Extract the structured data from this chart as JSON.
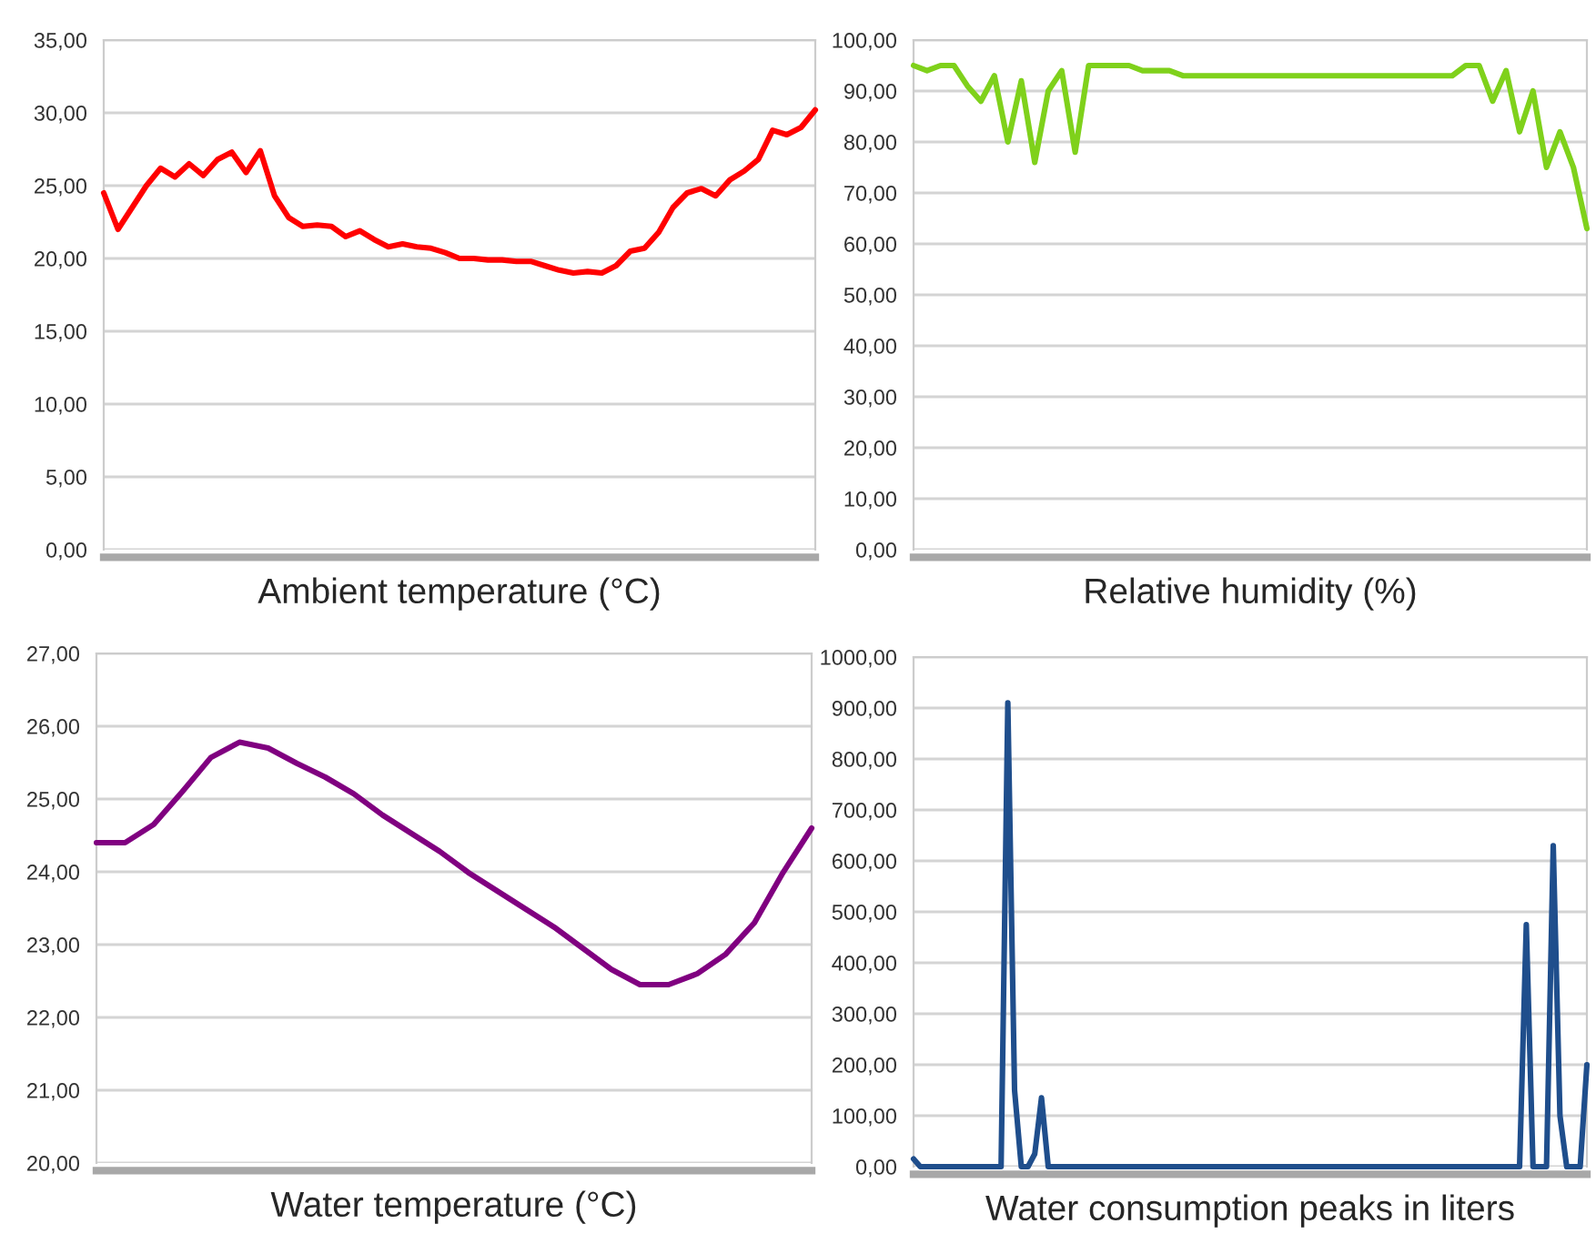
{
  "chart_data": [
    {
      "type": "line",
      "xlabel": "Ambient temperature (°C)",
      "categories": [
        null,
        null,
        null,
        null,
        null,
        null,
        null,
        null,
        null,
        null,
        null,
        null,
        null,
        null,
        null,
        null,
        null,
        null,
        null,
        null,
        null,
        null,
        null,
        null,
        null,
        null,
        null,
        null,
        null,
        null,
        null,
        null,
        null,
        null,
        null,
        null,
        null,
        null,
        null,
        null,
        null,
        null,
        null,
        null,
        null,
        null,
        null,
        null,
        null,
        null,
        null
      ],
      "series": [
        {
          "color": "#ff0000",
          "values": [
            24.5,
            22.0,
            23.5,
            25.0,
            26.2,
            25.6,
            26.5,
            25.7,
            26.8,
            27.3,
            25.9,
            27.4,
            24.3,
            22.8,
            22.2,
            22.3,
            22.2,
            21.5,
            21.9,
            21.3,
            20.8,
            21.0,
            20.8,
            20.7,
            20.4,
            20.0,
            20.0,
            19.9,
            19.9,
            19.8,
            19.8,
            19.5,
            19.2,
            19.0,
            19.1,
            19.0,
            19.5,
            20.5,
            20.7,
            21.8,
            23.5,
            24.5,
            24.8,
            24.3,
            25.4,
            26.0,
            26.8,
            28.8,
            28.5,
            29.0,
            30.2
          ]
        }
      ],
      "ylim": [
        0,
        35
      ],
      "yticks": [
        {
          "value": 0,
          "label": "0,00"
        },
        {
          "value": 5,
          "label": "5,00"
        },
        {
          "value": 10,
          "label": "10,00"
        },
        {
          "value": 15,
          "label": "15,00"
        },
        {
          "value": 20,
          "label": "20,00"
        },
        {
          "value": 25,
          "label": "25,00"
        },
        {
          "value": 30,
          "label": "30,00"
        },
        {
          "value": 35,
          "label": "35,00"
        }
      ],
      "grid": "y",
      "tick_labels": "y"
    },
    {
      "type": "line",
      "xlabel": "Relative humidity (%)",
      "categories": [
        null,
        null,
        null,
        null,
        null,
        null,
        null,
        null,
        null,
        null,
        null,
        null,
        null,
        null,
        null,
        null,
        null,
        null,
        null,
        null,
        null,
        null,
        null,
        null,
        null,
        null,
        null,
        null,
        null,
        null,
        null,
        null,
        null,
        null,
        null,
        null,
        null,
        null,
        null,
        null,
        null,
        null,
        null,
        null,
        null,
        null,
        null,
        null,
        null,
        null,
        null
      ],
      "series": [
        {
          "color": "#7fd11b",
          "values": [
            95,
            94,
            95,
            95,
            91,
            88,
            93,
            80,
            92,
            76,
            90,
            94,
            78,
            95,
            95,
            95,
            95,
            94,
            94,
            94,
            93,
            93,
            93,
            93,
            93,
            93,
            93,
            93,
            93,
            93,
            93,
            93,
            93,
            93,
            93,
            93,
            93,
            93,
            93,
            93,
            93,
            95,
            95,
            88,
            94,
            82,
            90,
            75,
            82,
            75,
            63
          ]
        }
      ],
      "ylim": [
        0,
        100
      ],
      "yticks": [
        {
          "value": 0,
          "label": "0,00"
        },
        {
          "value": 10,
          "label": "10,00"
        },
        {
          "value": 20,
          "label": "20,00"
        },
        {
          "value": 30,
          "label": "30,00"
        },
        {
          "value": 40,
          "label": "40,00"
        },
        {
          "value": 50,
          "label": "50,00"
        },
        {
          "value": 60,
          "label": "60,00"
        },
        {
          "value": 70,
          "label": "70,00"
        },
        {
          "value": 80,
          "label": "80,00"
        },
        {
          "value": 90,
          "label": "90,00"
        },
        {
          "value": 100,
          "label": "100,00"
        }
      ],
      "grid": "y",
      "tick_labels": "y"
    },
    {
      "type": "line",
      "xlabel": "Water temperature (°C)",
      "categories": [
        null,
        null,
        null,
        null,
        null,
        null,
        null,
        null,
        null,
        null,
        null,
        null,
        null,
        null,
        null,
        null,
        null,
        null,
        null,
        null,
        null,
        null,
        null,
        null,
        null,
        null
      ],
      "series": [
        {
          "color": "#800080",
          "values": [
            24.4,
            24.4,
            24.65,
            25.1,
            25.57,
            25.78,
            25.7,
            25.49,
            25.3,
            25.07,
            24.78,
            24.53,
            24.28,
            23.99,
            23.74,
            23.49,
            23.24,
            22.95,
            22.66,
            22.45,
            22.45,
            22.6,
            22.87,
            23.3,
            23.99,
            24.6
          ]
        }
      ],
      "ylim": [
        20,
        27
      ],
      "yticks": [
        {
          "value": 20,
          "label": "20,00"
        },
        {
          "value": 21,
          "label": "21,00"
        },
        {
          "value": 22,
          "label": "22,00"
        },
        {
          "value": 23,
          "label": "23,00"
        },
        {
          "value": 24,
          "label": "24,00"
        },
        {
          "value": 25,
          "label": "25,00"
        },
        {
          "value": 26,
          "label": "26,00"
        },
        {
          "value": 27,
          "label": "27,00"
        }
      ],
      "grid": "y",
      "tick_labels": "y"
    },
    {
      "type": "line",
      "xlabel": "Water consumption peaks in liters",
      "categories": [
        null,
        null,
        null,
        null,
        null,
        null,
        null,
        null,
        null,
        null,
        null,
        null,
        null,
        null,
        null,
        null,
        null,
        null,
        null,
        null,
        null,
        null,
        null,
        null,
        null,
        null,
        null,
        null,
        null,
        null,
        null,
        null,
        null,
        null,
        null,
        null,
        null,
        null,
        null,
        null,
        null,
        null,
        null,
        null,
        null,
        null,
        null,
        null,
        null,
        null,
        null,
        null,
        null,
        null,
        null,
        null,
        null,
        null,
        null,
        null,
        null,
        null,
        null,
        null,
        null,
        null,
        null,
        null,
        null,
        null,
        null,
        null,
        null,
        null,
        null,
        null,
        null,
        null,
        null,
        null,
        null,
        null,
        null,
        null,
        null,
        null,
        null,
        null,
        null,
        null,
        null,
        null,
        null,
        null,
        null,
        null,
        null,
        null,
        null,
        null,
        null
      ],
      "series": [
        {
          "color": "#1f4e8c",
          "values": [
            15,
            0,
            0,
            0,
            0,
            0,
            0,
            0,
            0,
            0,
            0,
            0,
            0,
            0,
            910,
            150,
            0,
            0,
            25,
            135,
            0,
            0,
            0,
            0,
            0,
            0,
            0,
            0,
            0,
            0,
            0,
            0,
            0,
            0,
            0,
            0,
            0,
            0,
            0,
            0,
            0,
            0,
            0,
            0,
            0,
            0,
            0,
            0,
            0,
            0,
            0,
            0,
            0,
            0,
            0,
            0,
            0,
            0,
            0,
            0,
            0,
            0,
            0,
            0,
            0,
            0,
            0,
            0,
            0,
            0,
            0,
            0,
            0,
            0,
            0,
            0,
            0,
            0,
            0,
            0,
            0,
            0,
            0,
            0,
            0,
            0,
            0,
            0,
            0,
            0,
            0,
            475,
            0,
            0,
            0,
            630,
            100,
            0,
            0,
            0,
            200
          ]
        }
      ],
      "ylim": [
        0,
        1000
      ],
      "yticks": [
        {
          "value": 0,
          "label": "0,00"
        },
        {
          "value": 100,
          "label": "100,00"
        },
        {
          "value": 200,
          "label": "200,00"
        },
        {
          "value": 300,
          "label": "300,00"
        },
        {
          "value": 400,
          "label": "400,00"
        },
        {
          "value": 500,
          "label": "500,00"
        },
        {
          "value": 600,
          "label": "600,00"
        },
        {
          "value": 700,
          "label": "700,00"
        },
        {
          "value": 800,
          "label": "800,00"
        },
        {
          "value": 900,
          "label": "900,00"
        },
        {
          "value": 1000,
          "label": "1000,00"
        }
      ],
      "grid": "y",
      "tick_labels": "y"
    }
  ]
}
